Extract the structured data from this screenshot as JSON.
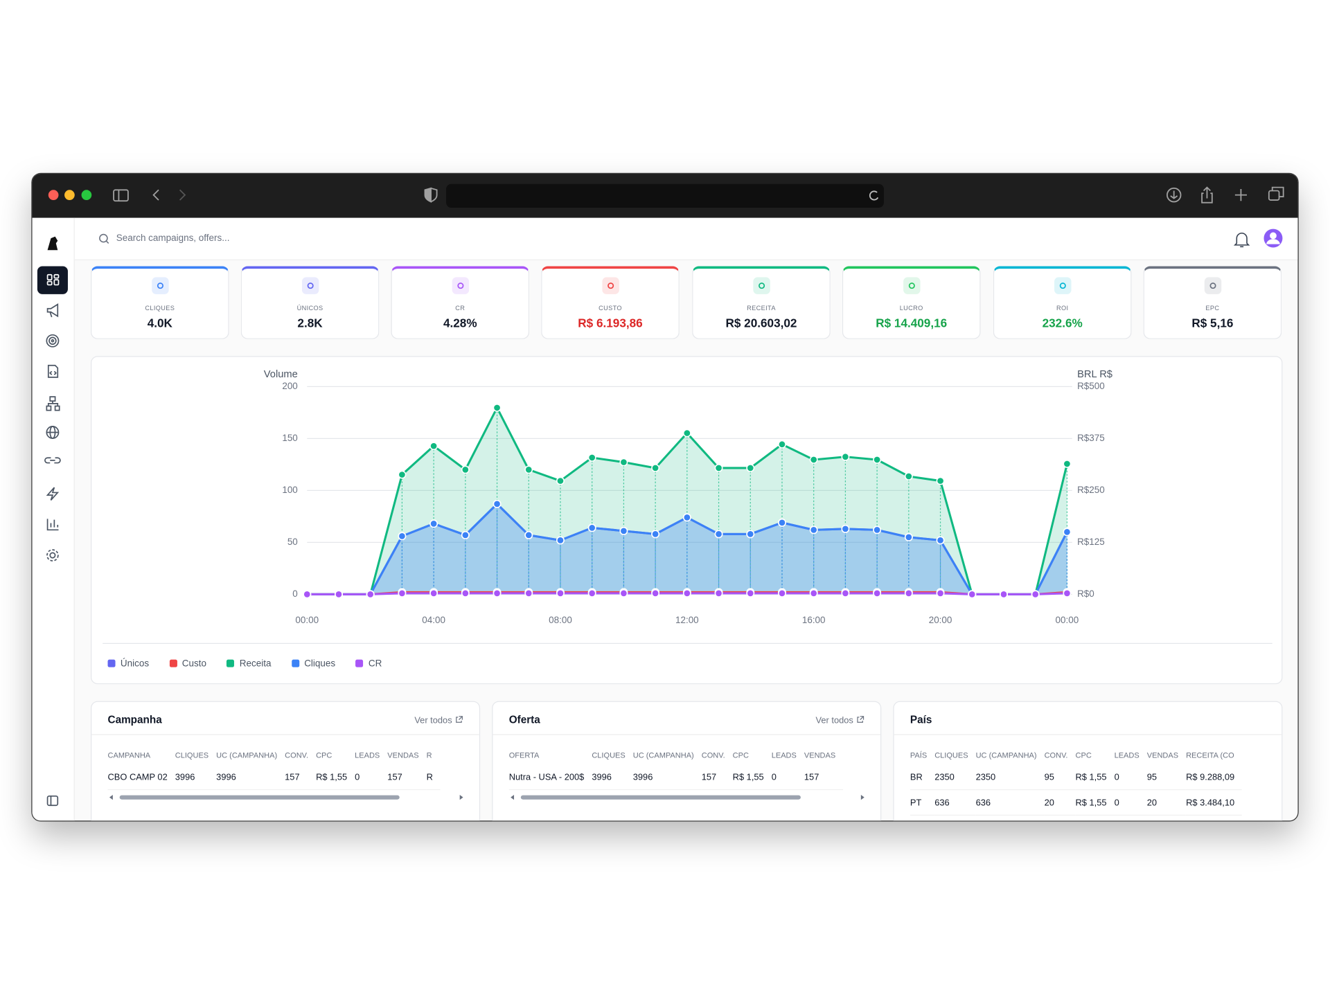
{
  "search_placeholder": "Search campaigns, offers...",
  "kpis": [
    {
      "label": "CLIQUES",
      "value": "4.0K",
      "color": "#3b82f6"
    },
    {
      "label": "ÚNICOS",
      "value": "2.8K",
      "color": "#6366f1"
    },
    {
      "label": "CR",
      "value": "4.28%",
      "color": "#a855f7"
    },
    {
      "label": "CUSTO",
      "value": "R$ 6.193,86",
      "color": "#ef4444"
    },
    {
      "label": "RECEITA",
      "value": "R$ 20.603,02",
      "color": "#10b981"
    },
    {
      "label": "LUCRO",
      "value": "R$ 14.409,16",
      "color": "#22c55e"
    },
    {
      "label": "ROI",
      "value": "232.6%",
      "color": "#06b6d4"
    },
    {
      "label": "EPC",
      "value": "R$ 5,16",
      "color": "#6b7280"
    }
  ],
  "chart_data": {
    "type": "line",
    "ylabel": "Volume",
    "y2label": "BRL R$",
    "categories": [
      "00:00",
      null,
      null,
      null,
      "04:00",
      null,
      null,
      null,
      "08:00",
      null,
      null,
      null,
      "12:00",
      null,
      null,
      null,
      "16:00",
      null,
      null,
      null,
      "20:00",
      null,
      null,
      null,
      "00:00"
    ],
    "series": [
      {
        "name": "Únicos",
        "color": "#6366f1",
        "values": [
          0,
          0,
          0,
          56,
          68,
          57,
          87,
          57,
          52,
          64,
          61,
          58,
          74,
          58,
          58,
          69,
          62,
          63,
          62,
          55,
          52,
          0,
          0,
          0,
          60
        ]
      },
      {
        "name": "Custo",
        "color": "#ef4444",
        "axis": "y2",
        "values": [
          0,
          0,
          0,
          5,
          5,
          5,
          5,
          5,
          5,
          5,
          5,
          5,
          5,
          5,
          5,
          5,
          5,
          5,
          5,
          5,
          5,
          0,
          0,
          0,
          5
        ]
      },
      {
        "name": "Receita",
        "color": "#10b981",
        "axis": "y2",
        "values": [
          0,
          0,
          0,
          288,
          357,
          300,
          449,
          300,
          273,
          329,
          318,
          304,
          388,
          304,
          304,
          361,
          324,
          331,
          324,
          284,
          273,
          0,
          0,
          0,
          314
        ]
      },
      {
        "name": "Cliques",
        "color": "#3b82f6",
        "values": [
          0,
          0,
          0,
          56,
          68,
          57,
          87,
          57,
          52,
          64,
          61,
          58,
          74,
          58,
          58,
          69,
          62,
          63,
          62,
          55,
          52,
          0,
          0,
          0,
          60
        ]
      },
      {
        "name": "CR",
        "color": "#a855f7",
        "values": [
          0,
          0,
          0,
          1,
          1,
          1,
          1,
          1,
          1,
          1,
          1,
          1,
          1,
          1,
          1,
          1,
          1,
          1,
          1,
          1,
          1,
          0,
          0,
          0,
          1
        ]
      }
    ],
    "ylim": [
      0,
      200
    ],
    "yticks": [
      0,
      50,
      100,
      150,
      200
    ],
    "y2lim": [
      0,
      500
    ],
    "y2ticks": [
      {
        "value": 0,
        "label": "R$0"
      },
      {
        "value": 125,
        "label": "R$125"
      },
      {
        "value": 250,
        "label": "R$250"
      },
      {
        "value": 375,
        "label": "R$375"
      },
      {
        "value": 500,
        "label": "R$500"
      }
    ],
    "grid": true,
    "legend": "bottom-left"
  },
  "tables": [
    {
      "title": "Campanha",
      "link": "Ver todos",
      "columns": [
        "CAMPANHA",
        "CLIQUES",
        "UC (CAMPANHA)",
        "CONV.",
        "CPC",
        "LEADS",
        "VENDAS",
        "R"
      ],
      "rows": [
        [
          "CBO CAMP 02",
          3996,
          3996,
          157,
          "R$ 1,55",
          0,
          157,
          "R"
        ]
      ]
    },
    {
      "title": "Oferta",
      "link": "Ver todos",
      "columns": [
        "OFERTA",
        "CLIQUES",
        "UC (CAMPANHA)",
        "CONV.",
        "CPC",
        "LEADS",
        "VENDAS"
      ],
      "rows": [
        [
          "Nutra - USA - 200$",
          3996,
          3996,
          157,
          "R$ 1,55",
          0,
          157
        ]
      ]
    },
    {
      "title": "País",
      "columns": [
        "PAÍS",
        "CLIQUES",
        "UC (CAMPANHA)",
        "CONV.",
        "CPC",
        "LEADS",
        "VENDAS",
        "RECEITA (CO"
      ],
      "rows": [
        [
          "BR",
          2350,
          2350,
          95,
          "R$ 1,55",
          0,
          95,
          "R$ 9.288,09"
        ],
        [
          "PT",
          636,
          636,
          20,
          "R$ 1,55",
          0,
          20,
          "R$ 3.484,10"
        ]
      ]
    }
  ]
}
